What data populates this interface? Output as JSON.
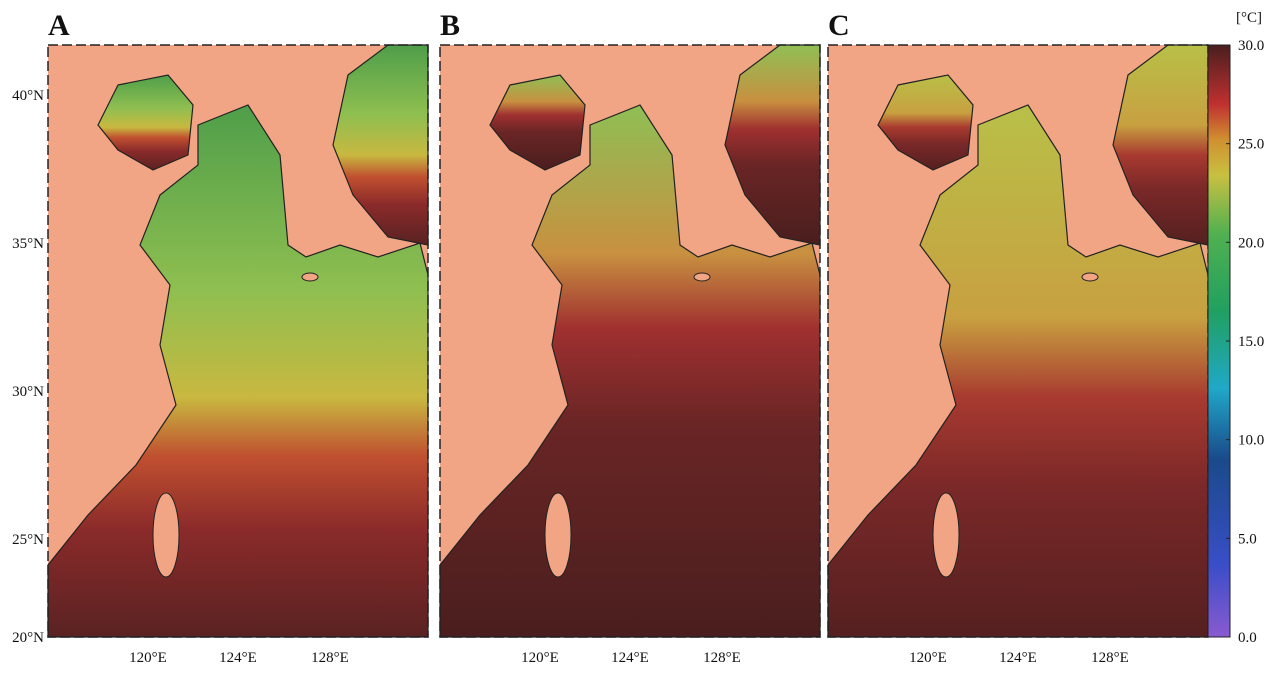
{
  "panels": [
    {
      "label": "A"
    },
    {
      "label": "B"
    },
    {
      "label": "C"
    }
  ],
  "lat_labels": [
    "40°N",
    "35°N",
    "30°N",
    "25°N",
    "20°N"
  ],
  "lon_labels": [
    "120°E",
    "124°E",
    "128°E"
  ],
  "colorbar": {
    "unit": "[°C]",
    "range": [
      0,
      30
    ],
    "ticks": [
      {
        "value": 0,
        "label": "0.0"
      },
      {
        "value": 5,
        "label": "5.0"
      },
      {
        "value": 10,
        "label": "10.0"
      },
      {
        "value": 15,
        "label": "15.0"
      },
      {
        "value": 20,
        "label": "20.0"
      },
      {
        "value": 25,
        "label": "25.0"
      },
      {
        "value": 30,
        "label": "30.0"
      }
    ]
  }
}
